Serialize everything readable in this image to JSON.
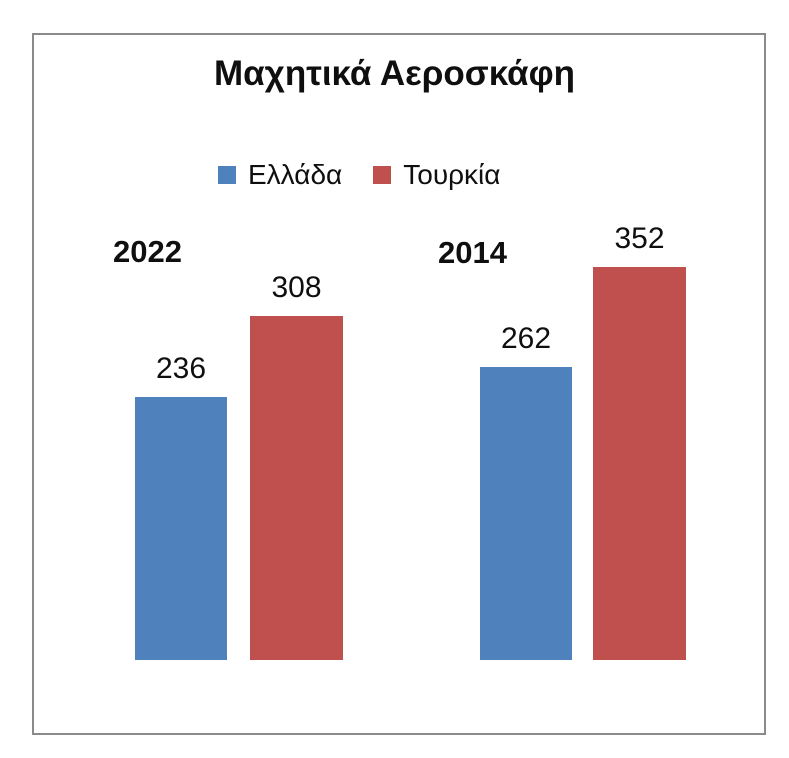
{
  "window": {
    "background_color": "#ffffff",
    "frame_border_color": "#8a8a8a",
    "text_color": "#0f0f0f"
  },
  "chart_data": {
    "type": "bar",
    "title": "Μαχητικά Αεροσκάφη",
    "categories": [
      "2022",
      "2014"
    ],
    "series": [
      {
        "name": "Ελλάδα",
        "color": "#4F81BD",
        "values": [
          236,
          262
        ]
      },
      {
        "name": "Τουρκία",
        "color": "#C0504D",
        "values": [
          308,
          352
        ]
      }
    ],
    "value_labels_shown": true,
    "legend_position": "top-center",
    "legend_entries": [
      "Ελλάδα",
      "Τουρκία"
    ],
    "grid": "off",
    "axes_shown": false
  }
}
